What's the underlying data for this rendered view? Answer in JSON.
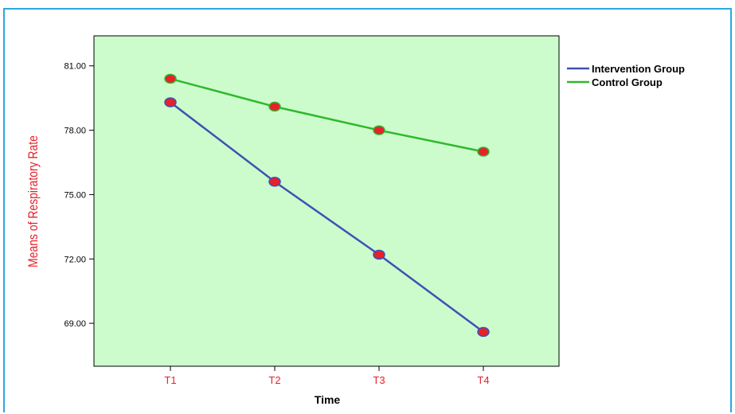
{
  "chart_data": {
    "type": "line",
    "title": "",
    "xlabel": "Time",
    "ylabel": "Means of Respiratory Rate",
    "categories": [
      "T1",
      "T2",
      "T3",
      "T4"
    ],
    "ylim": [
      67.0,
      82.4
    ],
    "yticks": [
      "81.00",
      "78.00",
      "75.00",
      "72.00",
      "69.00"
    ],
    "ytick_values": [
      81,
      78,
      75,
      72,
      69
    ],
    "grid": false,
    "legend_position": "right",
    "series": [
      {
        "name": "Intervention Group",
        "values": [
          79.3,
          75.6,
          72.2,
          68.6
        ],
        "color": "#3f51b5"
      },
      {
        "name": "Control Group",
        "values": [
          80.4,
          79.1,
          78.0,
          77.0
        ],
        "color": "#2eb82e"
      }
    ],
    "colors": {
      "plot_background": "#ccfccc",
      "marker_fill": "#e8202a",
      "category_label": "#e8202a",
      "ylabel": "#e8202a",
      "frame_border": "#2ea8e0"
    }
  }
}
